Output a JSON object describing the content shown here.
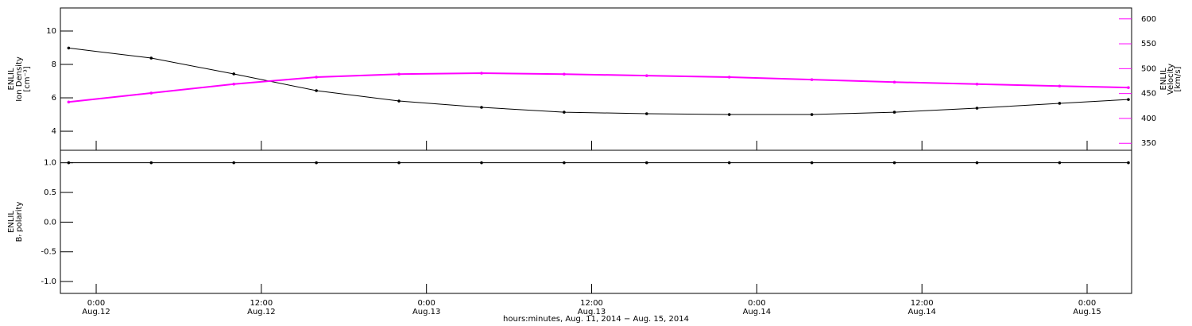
{
  "chart_data": [
    {
      "type": "line",
      "ylabel": [
        "ENLIL",
        "Ion Density",
        "[cm⁻³]"
      ],
      "y2label": [
        "ENLIL",
        "Velocity",
        "[km/s]"
      ],
      "xlim": [
        "2014-08-11 21:24",
        "2014-08-15 03:14"
      ],
      "ylim": [
        2.86,
        11.38
      ],
      "yticks": [
        4,
        6,
        8,
        10
      ],
      "y2lim": [
        336,
        622
      ],
      "y2ticks": [
        350,
        400,
        450,
        500,
        550,
        600
      ],
      "x": [
        "2014-08-11 22:00",
        "2014-08-12 04:00",
        "2014-08-12 10:00",
        "2014-08-12 16:00",
        "2014-08-12 22:00",
        "2014-08-13 04:00",
        "2014-08-13 10:00",
        "2014-08-13 16:00",
        "2014-08-13 22:00",
        "2014-08-14 04:00",
        "2014-08-14 10:00",
        "2014-08-14 16:00",
        "2014-08-14 22:00",
        "2014-08-15 03:00"
      ],
      "series": [
        {
          "color": "#000000",
          "values": [
            8.98,
            8.38,
            7.43,
            6.43,
            5.81,
            5.43,
            5.14,
            5.05,
            5.0,
            5.0,
            5.14,
            5.38,
            5.67,
            5.9
          ]
        },
        {
          "color": "#ff00ff",
          "axis": "y2",
          "values": [
            433,
            451,
            469,
            483,
            489,
            491,
            489,
            486,
            483,
            478,
            473,
            469,
            465,
            462
          ]
        }
      ]
    },
    {
      "type": "line",
      "ylabel": [
        "ENLIL",
        "Bᵣ polarity"
      ],
      "xlabel": "hours:minutes, Aug. 11, 2014 − Aug. 15, 2014",
      "xlim": [
        "2014-08-11 21:24",
        "2014-08-15 03:14"
      ],
      "ylim": [
        -1.2,
        1.21
      ],
      "yticks": [
        {
          "value": -1,
          "label": "-1.0"
        },
        {
          "value": -0.5,
          "label": "-0.5"
        },
        {
          "value": 0,
          "label": "0.0"
        },
        {
          "value": 0.5,
          "label": "0.5"
        },
        {
          "value": 1,
          "label": "1.0"
        }
      ],
      "xticks": [
        {
          "value": "2014-08-12 00:00",
          "label": [
            "0:00",
            "Aug.12"
          ]
        },
        {
          "value": "2014-08-12 12:00",
          "label": [
            "12:00",
            "Aug.12"
          ]
        },
        {
          "value": "2014-08-13 00:00",
          "label": [
            "0:00",
            "Aug.13"
          ]
        },
        {
          "value": "2014-08-13 12:00",
          "label": [
            "12:00",
            "Aug.13"
          ]
        },
        {
          "value": "2014-08-14 00:00",
          "label": [
            "0:00",
            "Aug.14"
          ]
        },
        {
          "value": "2014-08-14 12:00",
          "label": [
            "12:00",
            "Aug.14"
          ]
        },
        {
          "value": "2014-08-15 00:00",
          "label": [
            "0:00",
            "Aug.15"
          ]
        }
      ],
      "x": [
        "2014-08-11 22:00",
        "2014-08-12 04:00",
        "2014-08-12 10:00",
        "2014-08-12 16:00",
        "2014-08-12 22:00",
        "2014-08-13 04:00",
        "2014-08-13 10:00",
        "2014-08-13 16:00",
        "2014-08-13 22:00",
        "2014-08-14 04:00",
        "2014-08-14 10:00",
        "2014-08-14 16:00",
        "2014-08-14 22:00",
        "2014-08-15 03:00"
      ],
      "series": [
        {
          "color": "#000000",
          "values": [
            1,
            1,
            1,
            1,
            1,
            1,
            1,
            1,
            1,
            1,
            1,
            1,
            1,
            1
          ]
        }
      ]
    }
  ]
}
